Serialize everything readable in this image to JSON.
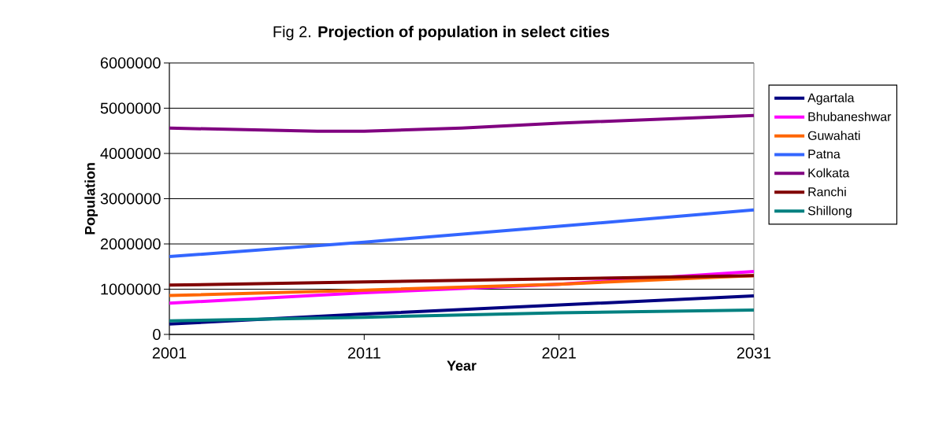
{
  "chart_data": {
    "type": "line",
    "title": "Fig 2. **Projection of population in select cities**",
    "xlabel": "Year",
    "ylabel": "Population",
    "xlim": [
      2001,
      2031
    ],
    "xticks": [
      2001,
      2011,
      2021,
      2031
    ],
    "ylim": [
      0,
      6000000
    ],
    "yticks": [
      0,
      1000000,
      2000000,
      3000000,
      4000000,
      5000000,
      6000000
    ],
    "grid": "y",
    "legend": "right",
    "marker": "none",
    "line_style": "solid",
    "series": [
      {
        "name": "Agartala",
        "color": "#000080",
        "x": [
          2001,
          2011,
          2021,
          2031
        ],
        "values": [
          230000,
          450000,
          650000,
          850000
        ]
      },
      {
        "name": "Bhubaneshwar",
        "color": "#ff00ff",
        "x": [
          2001,
          2011,
          2021,
          2031
        ],
        "values": [
          690000,
          920000,
          1110000,
          1390000
        ]
      },
      {
        "name": "Guwahati",
        "color": "#ff6600",
        "x": [
          2001,
          2011,
          2021,
          2031
        ],
        "values": [
          860000,
          980000,
          1110000,
          1300000
        ]
      },
      {
        "name": "Patna",
        "color": "#3366ff",
        "x": [
          2001,
          2011,
          2021,
          2031
        ],
        "values": [
          1720000,
          2040000,
          2390000,
          2750000
        ]
      },
      {
        "name": "Kolkata",
        "color": "#800080",
        "x": [
          2001,
          2008.6,
          2011,
          2016,
          2021,
          2031
        ],
        "values": [
          4560000,
          4490000,
          4490000,
          4560000,
          4670000,
          4840000
        ]
      },
      {
        "name": "Ranchi",
        "color": "#800000",
        "x": [
          2001,
          2011,
          2021,
          2031
        ],
        "values": [
          1090000,
          1160000,
          1230000,
          1300000
        ]
      },
      {
        "name": "Shillong",
        "color": "#008080",
        "x": [
          2001,
          2011,
          2021,
          2031
        ],
        "values": [
          300000,
          380000,
          480000,
          540000
        ]
      }
    ]
  }
}
